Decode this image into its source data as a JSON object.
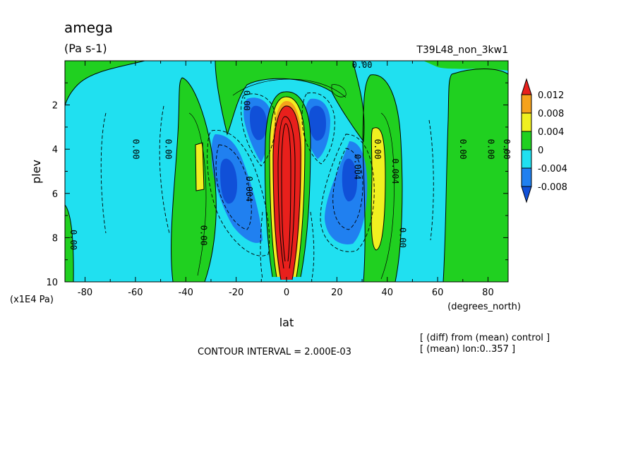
{
  "chart_data": {
    "type": "contour",
    "title": "amega",
    "units": "(Pa s-1)",
    "experiment": "T39L48_non_3kw1",
    "xlabel": "lat",
    "x_units": "(degrees_north)",
    "ylabel": "plev",
    "y_units": "(x1E4 Pa)",
    "xlim": [
      -88,
      88
    ],
    "ylim": [
      10,
      0
    ],
    "x_ticks": [
      "-80",
      "-60",
      "-40",
      "-20",
      "0",
      "20",
      "40",
      "60",
      "80"
    ],
    "y_ticks": [
      "2",
      "4",
      "6",
      "8",
      "10"
    ],
    "contour_interval_text": "CONTOUR INTERVAL = 2.000E-03",
    "notes": [
      "[ (diff) from (mean) control ]",
      "[ (mean) lon:0..357 ]"
    ],
    "colorbar": {
      "labels": [
        "0.012",
        "0.008",
        "0.004",
        "0",
        "-0.004",
        "-0.008"
      ],
      "colors": [
        "#e8201c",
        "#f5a21c",
        "#f0f020",
        "#20d020",
        "#20e0f0",
        "#2080f0",
        "#1050d8"
      ]
    },
    "contour_labels": [
      {
        "text": "0.00",
        "lat": 30,
        "plev": 0.05
      },
      {
        "text": "0.00",
        "lat": -87,
        "plev": 8.1
      },
      {
        "text": "0.00",
        "lat": -61,
        "plev": 4.0
      },
      {
        "text": "0.00",
        "lat": -48,
        "plev": 4.0
      },
      {
        "text": "0.00",
        "lat": -34,
        "plev": 7.9
      },
      {
        "text": "0.00",
        "lat": -17,
        "plev": 1.8
      },
      {
        "text": "0.004",
        "lat": -16,
        "plev": 5.8
      },
      {
        "text": "0.00",
        "lat": 35,
        "plev": 4.0
      },
      {
        "text": "0.004",
        "lat": 27,
        "plev": 4.8
      },
      {
        "text": "0.004",
        "lat": 42,
        "plev": 5.0
      },
      {
        "text": "0.00",
        "lat": 45,
        "plev": 8.0
      },
      {
        "text": "0.00",
        "lat": 69,
        "plev": 4.0
      },
      {
        "text": "0.00",
        "lat": 80,
        "plev": 4.0
      },
      {
        "text": "0.00",
        "lat": 88,
        "plev": 4.0
      }
    ]
  }
}
